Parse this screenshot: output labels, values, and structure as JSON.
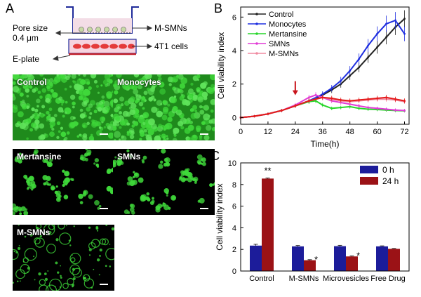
{
  "panels": {
    "a": "A",
    "b": "B",
    "c": "C"
  },
  "schematic": {
    "pore_label_1": "Pore size",
    "pore_label_2": "0.4 μm",
    "m_smns": "M-SMNs",
    "cells": "4T1 cells",
    "eplate": "E-plate"
  },
  "microscopy": {
    "tiles": [
      {
        "label": "Control",
        "pattern": "dense"
      },
      {
        "label": "Monocytes",
        "pattern": "dense"
      },
      {
        "label": "Mertansine",
        "pattern": "sparse"
      },
      {
        "label": "SMNs",
        "pattern": "sparse"
      },
      {
        "label": "M-SMNs",
        "pattern": "ring"
      }
    ],
    "color": "#3fd83a"
  },
  "chart_data": [
    {
      "type": "line",
      "xlabel": "Time(h)",
      "ylabel": "Cell viability index",
      "xlim": [
        0,
        74
      ],
      "ylim": [
        -0.4,
        6.6
      ],
      "xticks": [
        0,
        12,
        24,
        36,
        48,
        60,
        72
      ],
      "yticks": [
        0,
        2,
        4,
        6
      ],
      "legend_position": "top-left",
      "arrow_at_x": 24,
      "series": [
        {
          "name": "Control",
          "color": "#222222",
          "x": [
            0,
            6,
            12,
            18,
            24,
            30,
            36,
            40,
            44,
            48,
            52,
            56,
            60,
            64,
            68,
            72
          ],
          "y": [
            0.0,
            0.08,
            0.22,
            0.42,
            0.7,
            1.0,
            1.35,
            1.65,
            2.0,
            2.5,
            3.0,
            3.6,
            4.2,
            4.8,
            5.4,
            5.9
          ]
        },
        {
          "name": "Monocytes",
          "color": "#1f2fe0",
          "x": [
            0,
            6,
            12,
            18,
            24,
            30,
            36,
            40,
            44,
            48,
            52,
            56,
            60,
            64,
            68,
            72
          ],
          "y": [
            0.0,
            0.08,
            0.22,
            0.42,
            0.7,
            1.0,
            1.4,
            1.75,
            2.2,
            2.8,
            3.5,
            4.3,
            5.0,
            5.6,
            5.8,
            5.0
          ]
        },
        {
          "name": "Mertansine",
          "color": "#27d62a",
          "x": [
            0,
            6,
            12,
            18,
            24,
            30,
            33,
            36,
            40,
            44,
            48,
            52,
            56,
            60,
            64,
            68,
            72
          ],
          "y": [
            0.0,
            0.08,
            0.22,
            0.42,
            0.7,
            0.95,
            1.0,
            0.75,
            0.55,
            0.6,
            0.65,
            0.55,
            0.5,
            0.48,
            0.45,
            0.42,
            0.4
          ]
        },
        {
          "name": "SMNs",
          "color": "#e23bd6",
          "x": [
            0,
            6,
            12,
            18,
            24,
            30,
            33,
            36,
            40,
            44,
            48,
            52,
            56,
            60,
            64,
            68,
            72
          ],
          "y": [
            0.0,
            0.08,
            0.22,
            0.42,
            0.75,
            1.2,
            1.35,
            1.2,
            1.0,
            0.9,
            0.8,
            0.7,
            0.6,
            0.55,
            0.5,
            0.45,
            0.42
          ]
        },
        {
          "name": "M-SMNs",
          "color": "#f08aa0",
          "x": [
            0,
            6,
            12,
            18,
            24,
            30,
            36,
            40,
            44,
            48,
            52,
            56,
            60,
            64,
            68,
            72
          ],
          "y": [
            0.0,
            0.08,
            0.22,
            0.42,
            0.7,
            1.0,
            1.2,
            1.1,
            1.0,
            0.95,
            1.0,
            1.05,
            1.1,
            1.1,
            1.05,
            0.95
          ]
        },
        {
          "name": "",
          "color": "#e41a1a",
          "x": [
            0,
            6,
            12,
            18,
            24,
            30,
            36,
            40,
            44,
            48,
            52,
            56,
            60,
            64,
            68,
            72
          ],
          "y": [
            0.0,
            0.08,
            0.22,
            0.42,
            0.7,
            1.0,
            1.2,
            1.15,
            1.05,
            1.0,
            1.05,
            1.1,
            1.15,
            1.2,
            1.1,
            1.0
          ]
        }
      ]
    },
    {
      "type": "bar",
      "ylabel": "Cell viability index",
      "ylim": [
        0,
        10
      ],
      "yticks": [
        0,
        2,
        4,
        6,
        8,
        10
      ],
      "categories": [
        "Control",
        "M-SMNs",
        "Microvesicles",
        "Free Drug"
      ],
      "legend_position": "top-right",
      "series": [
        {
          "name": "0 h",
          "color": "#1c1c9a",
          "values": [
            2.35,
            2.28,
            2.3,
            2.28
          ],
          "errors": [
            0.12,
            0.08,
            0.08,
            0.05
          ]
        },
        {
          "name": "24 h",
          "color": "#9b1216",
          "values": [
            8.55,
            1.0,
            1.35,
            2.05
          ],
          "errors": [
            0.05,
            0.05,
            0.05,
            0.04
          ]
        }
      ],
      "annotations": [
        "**",
        "*",
        "*",
        ""
      ]
    }
  ]
}
